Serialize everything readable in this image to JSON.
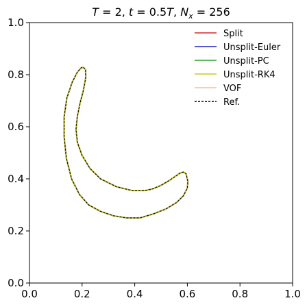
{
  "chart_data": {
    "type": "line",
    "title": {
      "prefix": "T",
      "mid1": " = 2, ",
      "t": "t",
      "mid2": " = 0.5",
      "T2": "T",
      "mid3": ", ",
      "N": "N",
      "sub": "x",
      "suffix": " = 256"
    },
    "xlabel": "",
    "ylabel": "",
    "xlim": [
      0,
      1
    ],
    "ylim": [
      0,
      1
    ],
    "x_ticks": [
      "0.0",
      "0.2",
      "0.4",
      "0.6",
      "0.8",
      "1.0"
    ],
    "y_ticks": [
      "0.0",
      "0.2",
      "0.4",
      "0.6",
      "0.8",
      "1.0"
    ],
    "grid": false,
    "legend_position": "top-right",
    "series": [
      {
        "name": "Split",
        "color": "#d62728",
        "style": "solid"
      },
      {
        "name": "Unsplit-Euler",
        "color": "#1f1fbf",
        "style": "solid"
      },
      {
        "name": "Unsplit-PC",
        "color": "#2ca02c",
        "style": "solid"
      },
      {
        "name": "Unsplit-RK4",
        "color": "#c8c81e",
        "style": "solid"
      },
      {
        "name": "VOF",
        "color": "#f5c48a",
        "style": "solid"
      },
      {
        "name": "Ref.",
        "color": "#000000",
        "style": "dashed"
      }
    ],
    "interface_curve": {
      "x": [
        0.205,
        0.213,
        0.214,
        0.205,
        0.192,
        0.182,
        0.177,
        0.182,
        0.2,
        0.23,
        0.27,
        0.33,
        0.39,
        0.44,
        0.47,
        0.5,
        0.53,
        0.555,
        0.572,
        0.585,
        0.595,
        0.602,
        0.6,
        0.585,
        0.56,
        0.52,
        0.47,
        0.42,
        0.37,
        0.32,
        0.27,
        0.225,
        0.19,
        0.16,
        0.14,
        0.132,
        0.132,
        0.142,
        0.162,
        0.182,
        0.197,
        0.205
      ],
      "y": [
        0.828,
        0.82,
        0.79,
        0.74,
        0.69,
        0.64,
        0.59,
        0.54,
        0.49,
        0.44,
        0.4,
        0.37,
        0.355,
        0.355,
        0.362,
        0.375,
        0.393,
        0.41,
        0.422,
        0.426,
        0.42,
        0.39,
        0.365,
        0.335,
        0.31,
        0.285,
        0.265,
        0.25,
        0.25,
        0.258,
        0.275,
        0.3,
        0.34,
        0.4,
        0.48,
        0.56,
        0.64,
        0.71,
        0.77,
        0.81,
        0.827,
        0.828
      ]
    }
  }
}
